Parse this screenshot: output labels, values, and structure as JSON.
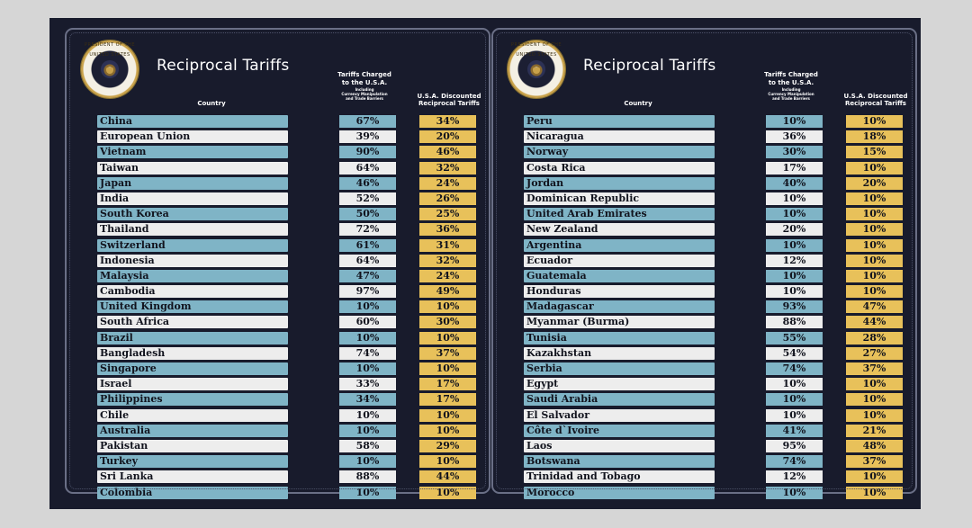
{
  "panels": [
    {
      "id": "left",
      "title": "Reciprocal Tariffs",
      "seal_text": "PRESIDENT OF THE UNITED STATES",
      "headers": {
        "country": "Country",
        "charged_line1": "Tariffs Charged",
        "charged_line2": "to the U.S.A.",
        "charged_note1": "Including",
        "charged_note2": "Currency Manipulation",
        "charged_note3": "and Trade Barriers",
        "discount_line1": "U.S.A. Discounted",
        "discount_line2": "Reciprocal Tariffs"
      },
      "rows": [
        {
          "country": "China",
          "charged": "67%",
          "reciprocal": "34%"
        },
        {
          "country": "European Union",
          "charged": "39%",
          "reciprocal": "20%"
        },
        {
          "country": "Vietnam",
          "charged": "90%",
          "reciprocal": "46%"
        },
        {
          "country": "Taiwan",
          "charged": "64%",
          "reciprocal": "32%"
        },
        {
          "country": "Japan",
          "charged": "46%",
          "reciprocal": "24%"
        },
        {
          "country": "India",
          "charged": "52%",
          "reciprocal": "26%"
        },
        {
          "country": "South Korea",
          "charged": "50%",
          "reciprocal": "25%"
        },
        {
          "country": "Thailand",
          "charged": "72%",
          "reciprocal": "36%"
        },
        {
          "country": "Switzerland",
          "charged": "61%",
          "reciprocal": "31%"
        },
        {
          "country": "Indonesia",
          "charged": "64%",
          "reciprocal": "32%"
        },
        {
          "country": "Malaysia",
          "charged": "47%",
          "reciprocal": "24%"
        },
        {
          "country": "Cambodia",
          "charged": "97%",
          "reciprocal": "49%"
        },
        {
          "country": "United Kingdom",
          "charged": "10%",
          "reciprocal": "10%"
        },
        {
          "country": "South Africa",
          "charged": "60%",
          "reciprocal": "30%"
        },
        {
          "country": "Brazil",
          "charged": "10%",
          "reciprocal": "10%"
        },
        {
          "country": "Bangladesh",
          "charged": "74%",
          "reciprocal": "37%"
        },
        {
          "country": "Singapore",
          "charged": "10%",
          "reciprocal": "10%"
        },
        {
          "country": "Israel",
          "charged": "33%",
          "reciprocal": "17%"
        },
        {
          "country": "Philippines",
          "charged": "34%",
          "reciprocal": "17%"
        },
        {
          "country": "Chile",
          "charged": "10%",
          "reciprocal": "10%"
        },
        {
          "country": "Australia",
          "charged": "10%",
          "reciprocal": "10%"
        },
        {
          "country": "Pakistan",
          "charged": "58%",
          "reciprocal": "29%"
        },
        {
          "country": "Turkey",
          "charged": "10%",
          "reciprocal": "10%"
        },
        {
          "country": "Sri Lanka",
          "charged": "88%",
          "reciprocal": "44%"
        },
        {
          "country": "Colombia",
          "charged": "10%",
          "reciprocal": "10%"
        }
      ]
    },
    {
      "id": "right",
      "title": "Reciprocal Tariffs",
      "seal_text": "PRESIDENT OF THE UNITED STATES",
      "headers": {
        "country": "Country",
        "charged_line1": "Tariffs Charged",
        "charged_line2": "to the U.S.A.",
        "charged_note1": "Including",
        "charged_note2": "Currency Manipulation",
        "charged_note3": "and Trade Barriers",
        "discount_line1": "U.S.A. Discounted",
        "discount_line2": "Reciprocal Tariffs"
      },
      "rows": [
        {
          "country": "Peru",
          "charged": "10%",
          "reciprocal": "10%"
        },
        {
          "country": "Nicaragua",
          "charged": "36%",
          "reciprocal": "18%"
        },
        {
          "country": "Norway",
          "charged": "30%",
          "reciprocal": "15%"
        },
        {
          "country": "Costa Rica",
          "charged": "17%",
          "reciprocal": "10%"
        },
        {
          "country": "Jordan",
          "charged": "40%",
          "reciprocal": "20%"
        },
        {
          "country": "Dominican Republic",
          "charged": "10%",
          "reciprocal": "10%"
        },
        {
          "country": "United Arab Emirates",
          "charged": "10%",
          "reciprocal": "10%"
        },
        {
          "country": "New Zealand",
          "charged": "20%",
          "reciprocal": "10%"
        },
        {
          "country": "Argentina",
          "charged": "10%",
          "reciprocal": "10%"
        },
        {
          "country": "Ecuador",
          "charged": "12%",
          "reciprocal": "10%"
        },
        {
          "country": "Guatemala",
          "charged": "10%",
          "reciprocal": "10%"
        },
        {
          "country": "Honduras",
          "charged": "10%",
          "reciprocal": "10%"
        },
        {
          "country": "Madagascar",
          "charged": "93%",
          "reciprocal": "47%"
        },
        {
          "country": "Myanmar (Burma)",
          "charged": "88%",
          "reciprocal": "44%"
        },
        {
          "country": "Tunisia",
          "charged": "55%",
          "reciprocal": "28%"
        },
        {
          "country": "Kazakhstan",
          "charged": "54%",
          "reciprocal": "27%"
        },
        {
          "country": "Serbia",
          "charged": "74%",
          "reciprocal": "37%"
        },
        {
          "country": "Egypt",
          "charged": "10%",
          "reciprocal": "10%"
        },
        {
          "country": "Saudi Arabia",
          "charged": "10%",
          "reciprocal": "10%"
        },
        {
          "country": "El Salvador",
          "charged": "10%",
          "reciprocal": "10%"
        },
        {
          "country": "Côte d`Ivoire",
          "charged": "41%",
          "reciprocal": "21%"
        },
        {
          "country": "Laos",
          "charged": "95%",
          "reciprocal": "48%"
        },
        {
          "country": "Botswana",
          "charged": "74%",
          "reciprocal": "37%"
        },
        {
          "country": "Trinidad and Tobago",
          "charged": "12%",
          "reciprocal": "10%"
        },
        {
          "country": "Morocco",
          "charged": "10%",
          "reciprocal": "10%"
        }
      ]
    }
  ],
  "colors": {
    "background": "#d6d6d6",
    "poster": "#181b2c",
    "row_blue": "#7fb4c6",
    "row_white": "#ededed",
    "reciprocal_gold": "#e8c15a"
  }
}
